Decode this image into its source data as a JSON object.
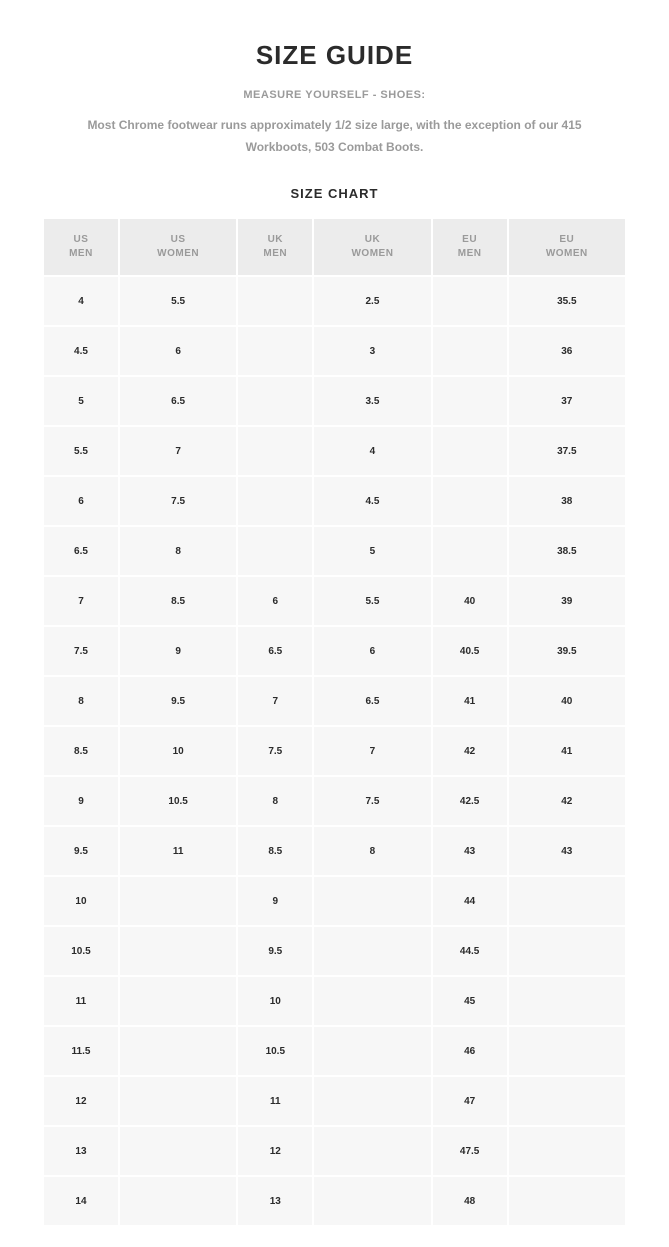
{
  "title": "SIZE GUIDE",
  "subtitle": "MEASURE YOURSELF - SHOES:",
  "description": "Most Chrome footwear runs approximately 1/2 size large, with the exception of our 415 Workboots, 503 Combat Boots.",
  "chart_title": "SIZE CHART",
  "colors": {
    "background": "#ffffff",
    "header_bg": "#ececec",
    "cell_bg": "#f7f7f7",
    "title_text": "#2b2b2b",
    "muted_text": "#9a9a9a",
    "cell_text": "#2b2b2b"
  },
  "columns": [
    {
      "line1": "US",
      "line2": "MEN"
    },
    {
      "line1": "US",
      "line2": "WOMEN"
    },
    {
      "line1": "UK",
      "line2": "MEN"
    },
    {
      "line1": "UK",
      "line2": "WOMEN"
    },
    {
      "line1": "EU",
      "line2": "MEN"
    },
    {
      "line1": "EU",
      "line2": "WOMEN"
    }
  ],
  "rows": [
    [
      "4",
      "5.5",
      "",
      "2.5",
      "",
      "35.5"
    ],
    [
      "4.5",
      "6",
      "",
      "3",
      "",
      "36"
    ],
    [
      "5",
      "6.5",
      "",
      "3.5",
      "",
      "37"
    ],
    [
      "5.5",
      "7",
      "",
      "4",
      "",
      "37.5"
    ],
    [
      "6",
      "7.5",
      "",
      "4.5",
      "",
      "38"
    ],
    [
      "6.5",
      "8",
      "",
      "5",
      "",
      "38.5"
    ],
    [
      "7",
      "8.5",
      "6",
      "5.5",
      "40",
      "39"
    ],
    [
      "7.5",
      "9",
      "6.5",
      "6",
      "40.5",
      "39.5"
    ],
    [
      "8",
      "9.5",
      "7",
      "6.5",
      "41",
      "40"
    ],
    [
      "8.5",
      "10",
      "7.5",
      "7",
      "42",
      "41"
    ],
    [
      "9",
      "10.5",
      "8",
      "7.5",
      "42.5",
      "42"
    ],
    [
      "9.5",
      "11",
      "8.5",
      "8",
      "43",
      "43"
    ],
    [
      "10",
      "",
      "9",
      "",
      "44",
      ""
    ],
    [
      "10.5",
      "",
      "9.5",
      "",
      "44.5",
      ""
    ],
    [
      "11",
      "",
      "10",
      "",
      "45",
      ""
    ],
    [
      "11.5",
      "",
      "10.5",
      "",
      "46",
      ""
    ],
    [
      "12",
      "",
      "11",
      "",
      "47",
      ""
    ],
    [
      "13",
      "",
      "12",
      "",
      "47.5",
      ""
    ],
    [
      "14",
      "",
      "13",
      "",
      "48",
      ""
    ]
  ]
}
